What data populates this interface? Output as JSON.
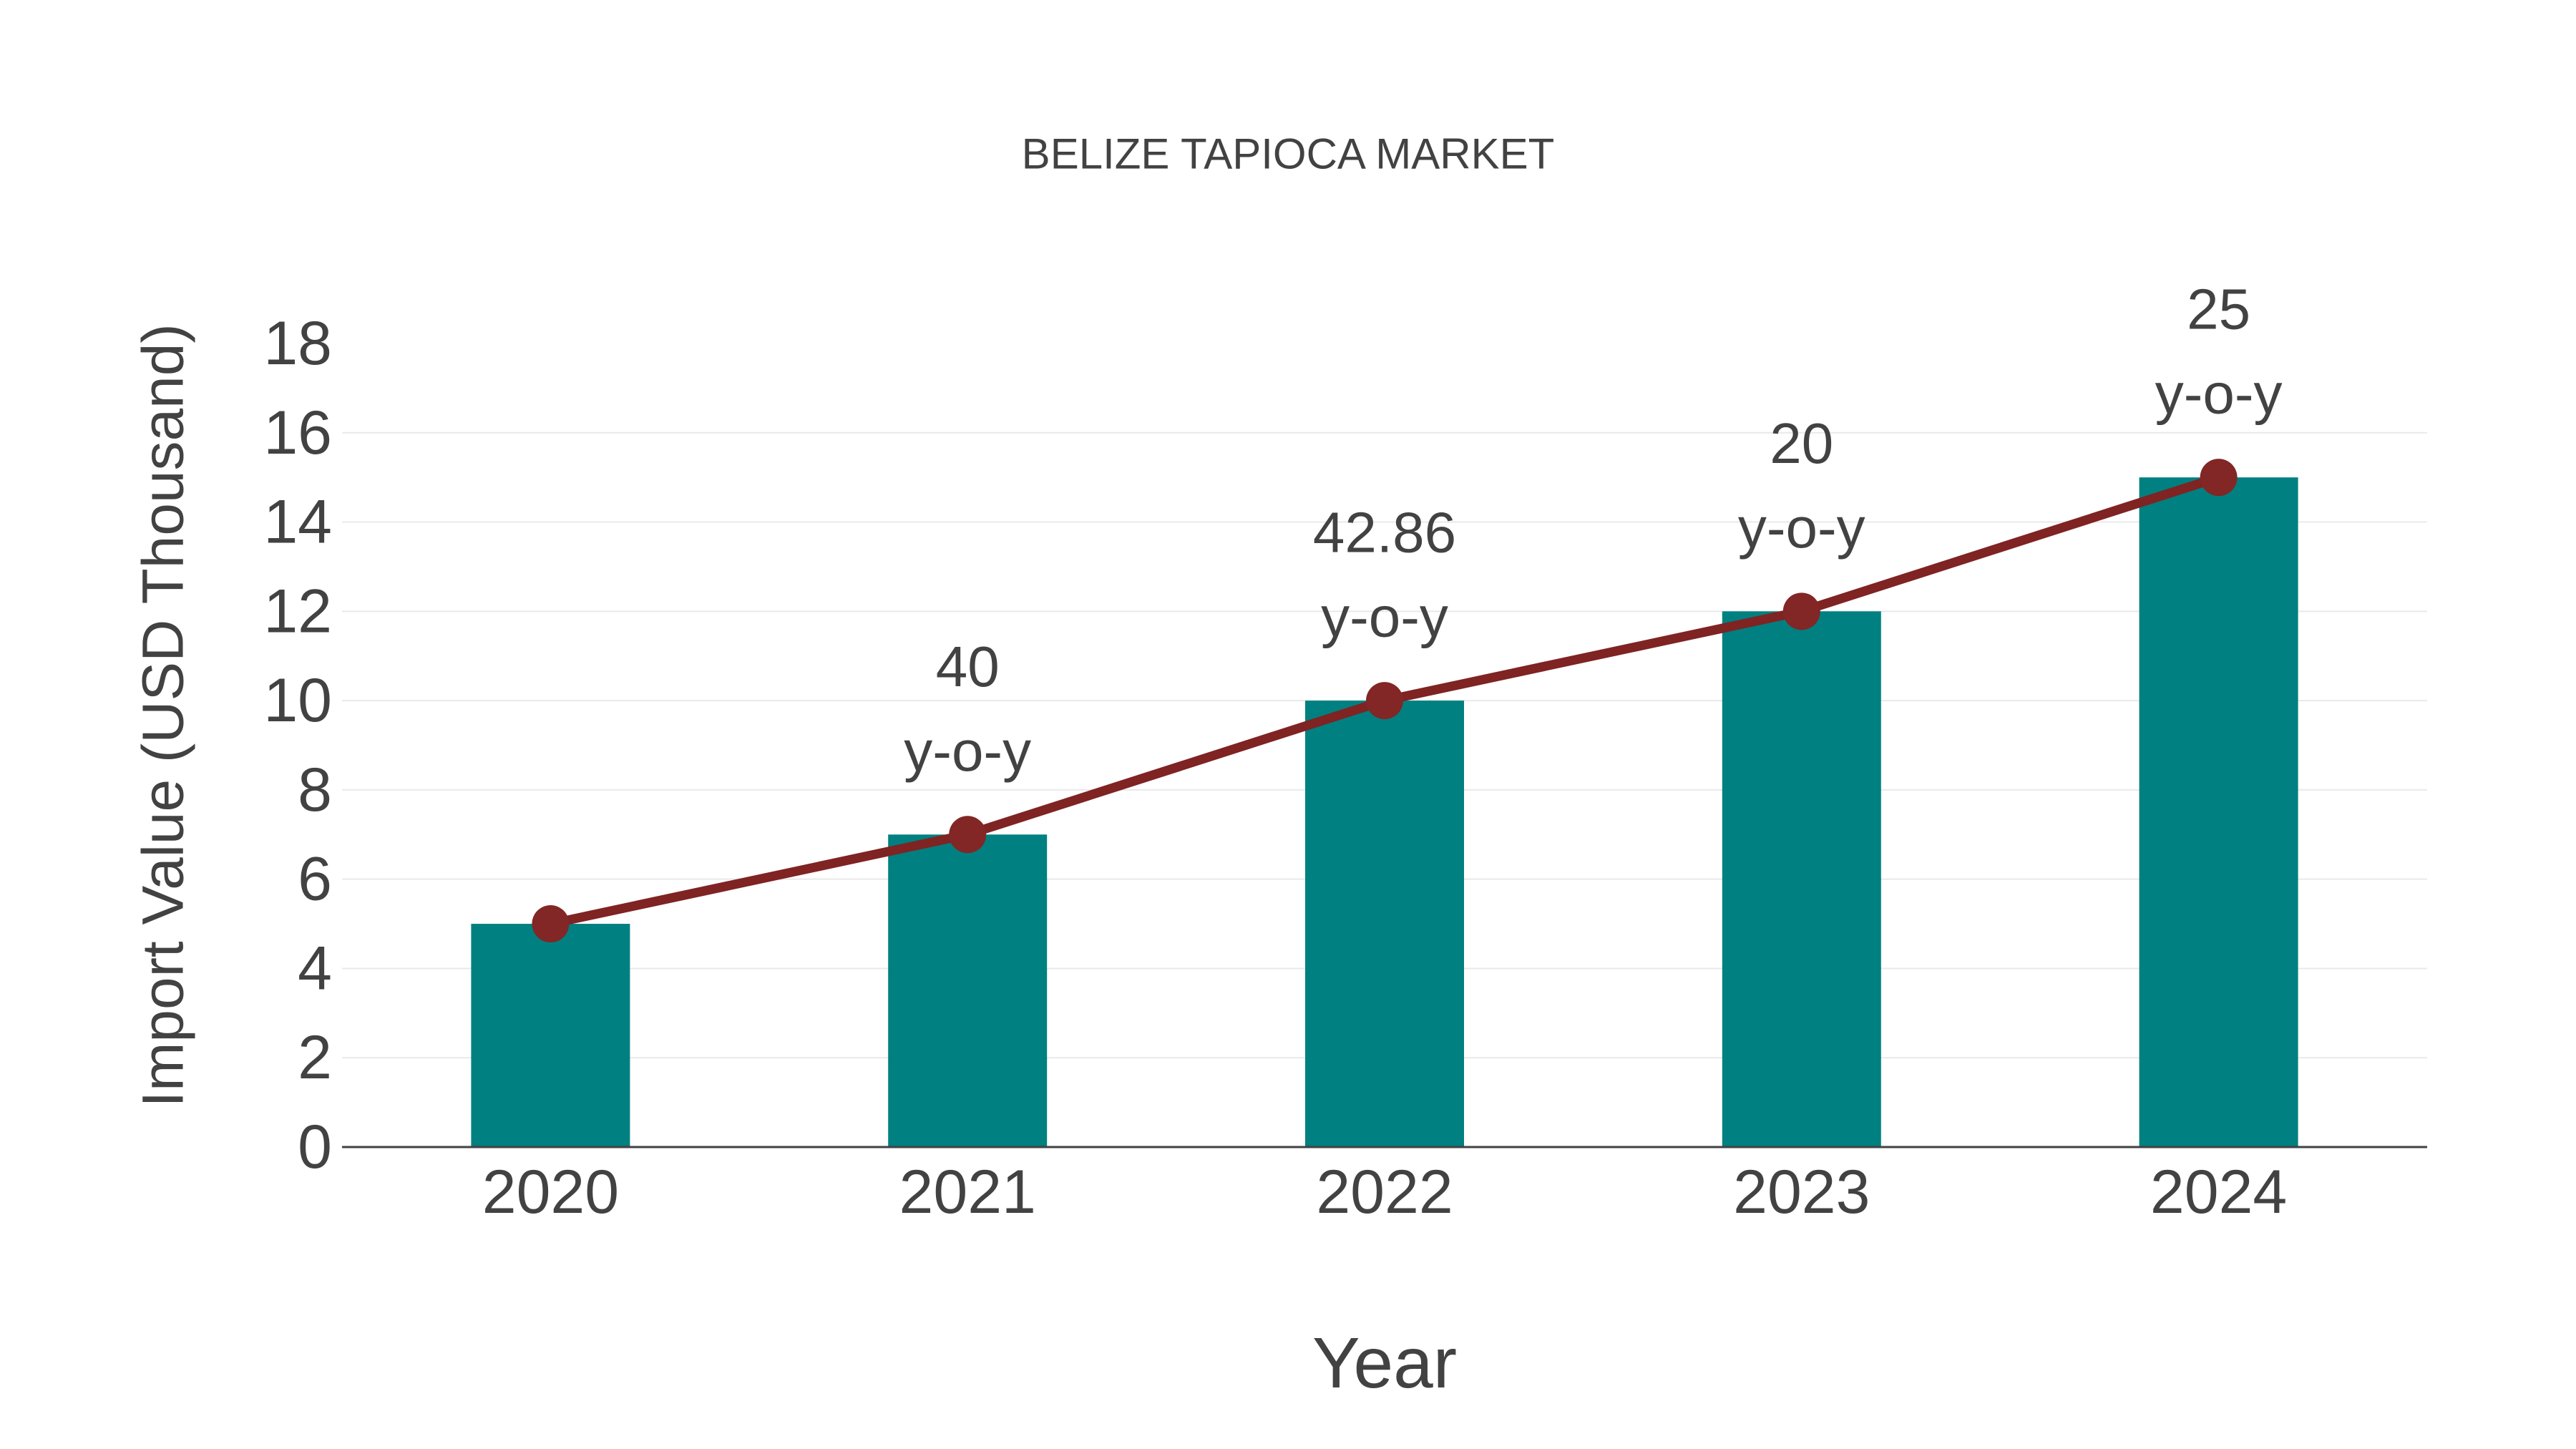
{
  "chart_data": {
    "type": "bar",
    "title": "BELIZE TAPIOCA MARKET",
    "xlabel": "Year",
    "ylabel": "Import Value (USD Thousand)",
    "categories": [
      "2020",
      "2021",
      "2022",
      "2023",
      "2024"
    ],
    "series": [
      {
        "name": "import-value-bars",
        "type": "bar",
        "values": [
          5,
          7,
          10,
          12,
          15
        ]
      },
      {
        "name": "import-value-trend",
        "type": "line",
        "values": [
          5,
          7,
          10,
          12,
          15
        ]
      }
    ],
    "annotations": [
      {
        "category_index": 1,
        "line1": "40",
        "line2": "y-o-y"
      },
      {
        "category_index": 2,
        "line1": "42.86",
        "line2": "y-o-y"
      },
      {
        "category_index": 3,
        "line1": "20",
        "line2": "y-o-y"
      },
      {
        "category_index": 4,
        "line1": "25",
        "line2": "y-o-y"
      }
    ],
    "ylim": [
      0,
      18
    ],
    "ytick_step": 2,
    "grid": true,
    "legend": "none",
    "colors": {
      "bar": "#008080",
      "line": "#7f2323",
      "marker": "#822626",
      "text": "#424242",
      "grid": "#e9e9e9",
      "axis": "#424242"
    }
  }
}
